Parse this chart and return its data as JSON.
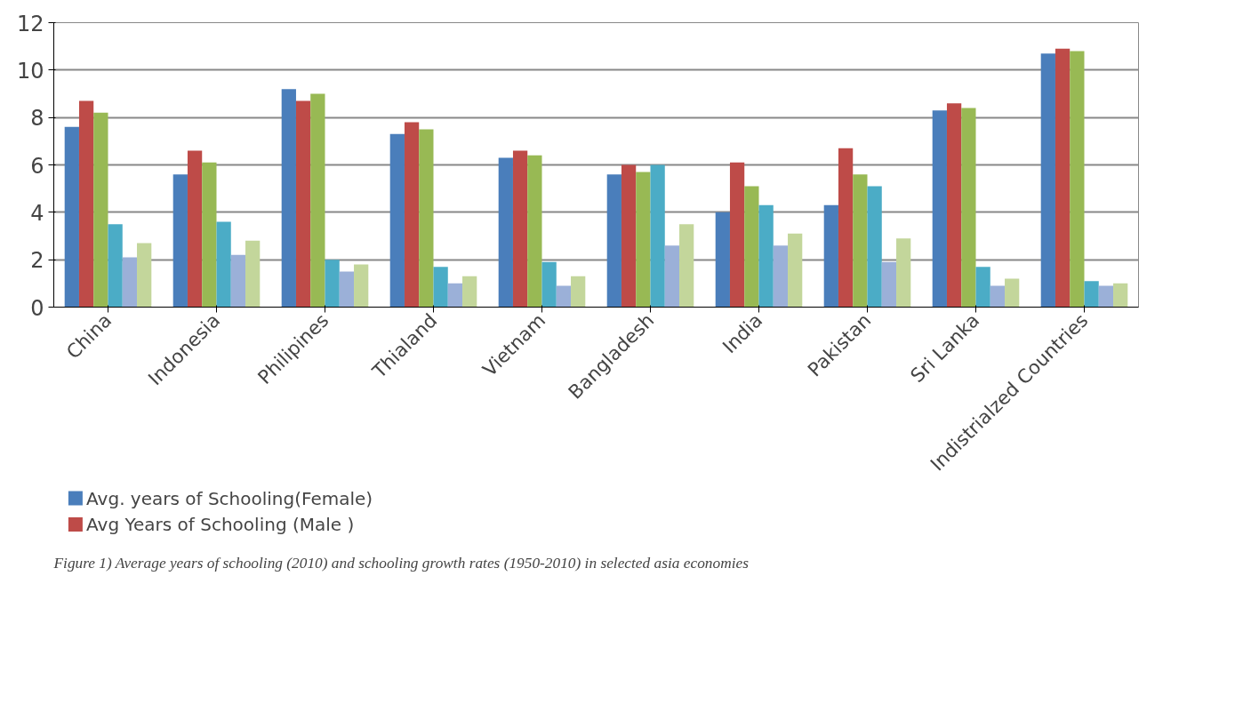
{
  "chart_data": {
    "type": "bar",
    "categories": [
      "China",
      "Indonesia",
      "Philipines",
      "Thialand",
      "Vietnam",
      "Bangladesh",
      "India",
      "Pakistan",
      "Sri Lanka",
      "Indistrialzed Countries"
    ],
    "series": [
      {
        "name": "Avg. years of Schooling(Female)",
        "color": "#4a7ebb",
        "values": [
          7.6,
          5.6,
          9.2,
          7.3,
          6.3,
          5.6,
          4.0,
          4.3,
          8.3,
          10.7
        ]
      },
      {
        "name": "Avg Years of Schooling (Male )",
        "color": "#be4b48",
        "values": [
          8.7,
          6.6,
          8.7,
          7.8,
          6.6,
          6.0,
          6.1,
          6.7,
          8.6,
          10.9
        ]
      },
      {
        "color": "#98b954",
        "values": [
          8.2,
          6.1,
          9.0,
          7.5,
          6.4,
          5.7,
          5.1,
          5.6,
          8.4,
          10.8
        ]
      },
      {
        "color": "#4bacc6",
        "values": [
          3.5,
          3.6,
          2.0,
          1.7,
          1.9,
          6.0,
          4.3,
          5.1,
          1.7,
          1.1
        ]
      },
      {
        "color": "#9bb0d8",
        "values": [
          2.1,
          2.2,
          1.5,
          1.0,
          0.9,
          2.6,
          2.6,
          1.9,
          0.9,
          0.9
        ]
      },
      {
        "color": "#c3d69b",
        "values": [
          2.7,
          2.8,
          1.8,
          1.3,
          1.3,
          3.5,
          3.1,
          2.9,
          1.2,
          1.0
        ]
      }
    ],
    "ylim": [
      0,
      12
    ],
    "yticks": [
      0,
      2,
      4,
      6,
      8,
      10,
      12
    ],
    "grid": "y",
    "legend": "bottom left",
    "annotations": [
      "Figure 1) Average years of schooling (2010) and schooling growth rates (1950-2010) in selected asia economies"
    ]
  }
}
